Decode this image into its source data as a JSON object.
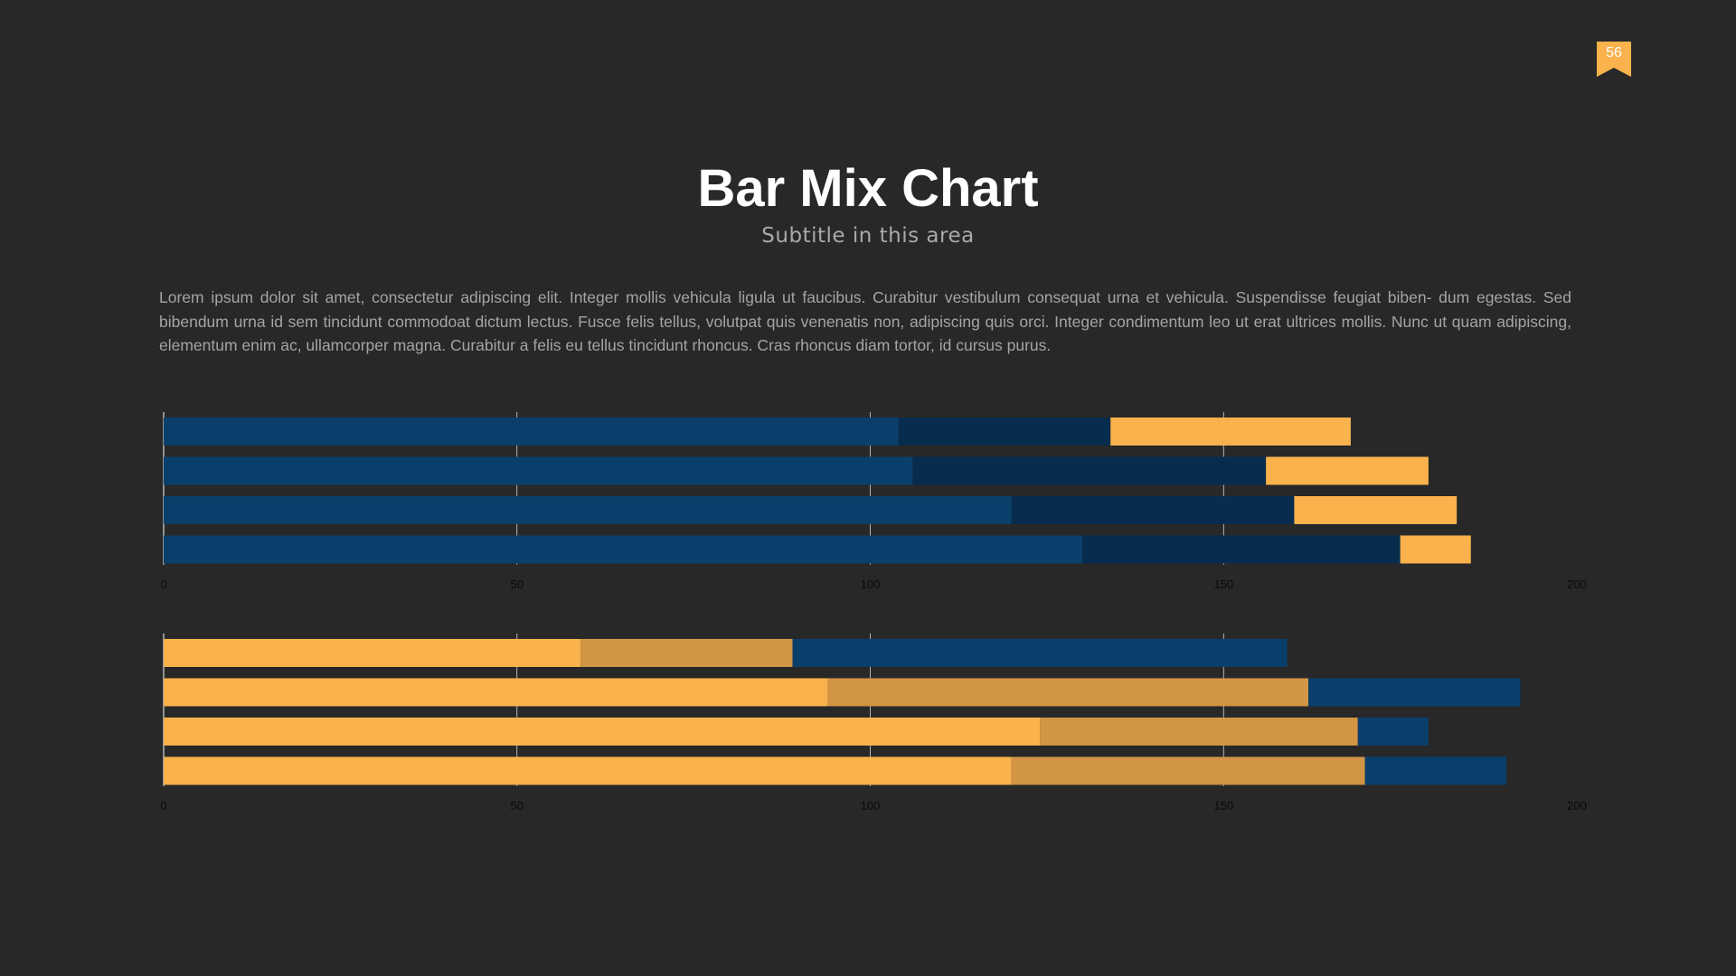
{
  "page": {
    "number": "56",
    "title": "Bar Mix Chart",
    "subtitle": "Subtitle in this area",
    "body": "Lorem ipsum dolor sit amet, consectetur adipiscing elit. Integer mollis vehicula ligula ut faucibus. Curabitur vestibulum consequat urna et vehicula. Suspendisse feugiat biben- dum egestas. Sed bibendum urna id sem tincidunt commodoat dictum lectus. Fusce felis tellus, volutpat quis venenatis non, adipiscing quis orci. Integer condimentum leo ut erat ultrices mollis. Nunc ut quam adipiscing, elementum enim ac, ullamcorper magna. Curabitur a felis eu tellus tincidunt rhoncus. Cras rhoncus diam tortor, id cursus purus."
  },
  "colors": {
    "background": "#282828",
    "blue": "#0b3f6b",
    "navy": "#082c4e",
    "orange": "#f9b24c",
    "tan": "#d19544",
    "gridline": "#d8d8d8",
    "tick_label": "#0a0a0a"
  },
  "chart_data": [
    {
      "type": "bar",
      "orientation": "horizontal",
      "stacked": true,
      "xlim": [
        0,
        200
      ],
      "ticks": [
        "0",
        "50",
        "100",
        "150",
        "200"
      ],
      "grid": true,
      "series": [
        {
          "values": [
            104,
            106,
            120,
            130
          ],
          "color": "#0b3f6b"
        },
        {
          "values": [
            30,
            50,
            40,
            45
          ],
          "color": "#082c4e"
        },
        {
          "values": [
            34,
            23,
            23,
            10
          ],
          "color": "#f9b24c"
        }
      ]
    },
    {
      "type": "bar",
      "orientation": "horizontal",
      "stacked": true,
      "xlim": [
        0,
        200
      ],
      "ticks": [
        "0",
        "50",
        "100",
        "150",
        "200"
      ],
      "grid": true,
      "series": [
        {
          "values": [
            59,
            94,
            124,
            120
          ],
          "color": "#f9b24c"
        },
        {
          "values": [
            30,
            68,
            45,
            50
          ],
          "color": "#d19544"
        },
        {
          "values": [
            70,
            30,
            10,
            20
          ],
          "color": "#0b3f6b"
        }
      ]
    }
  ]
}
